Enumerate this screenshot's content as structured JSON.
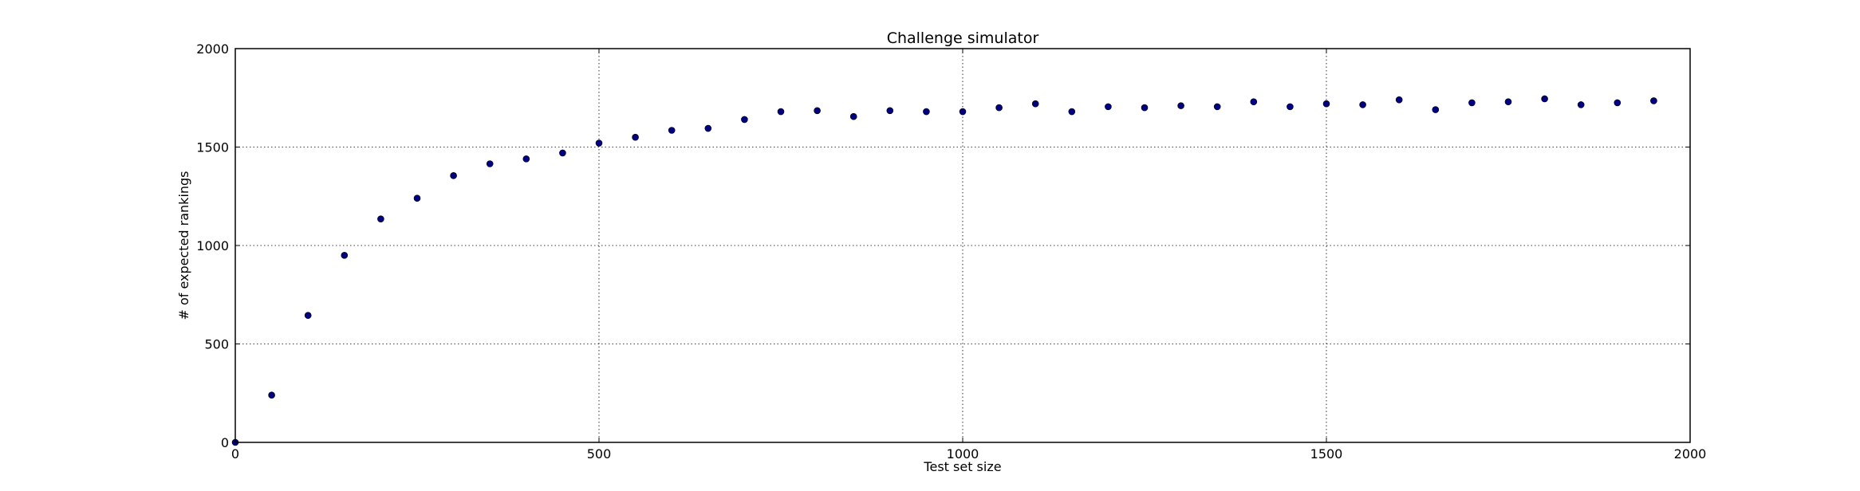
{
  "chart_data": {
    "type": "scatter",
    "title": "Challenge simulator",
    "xlabel": "Test set size",
    "ylabel": "# of expected rankings",
    "xlim": [
      0,
      2000
    ],
    "ylim": [
      0,
      2000
    ],
    "xticks": [
      0,
      500,
      1000,
      1500,
      2000
    ],
    "yticks": [
      0,
      500,
      1000,
      1500,
      2000
    ],
    "xtick_labels": [
      "0",
      "500",
      "1000",
      "1500",
      "2000"
    ],
    "ytick_labels": [
      "0",
      "500",
      "1000",
      "1500",
      "2000"
    ],
    "grid": true,
    "legend": "none",
    "marker_color": "#000080",
    "series": [
      {
        "x": [
          0,
          50,
          100,
          150,
          200,
          250,
          300,
          350,
          400,
          450,
          500,
          550,
          600,
          650,
          700,
          750,
          800,
          850,
          900,
          950,
          1000,
          1050,
          1100,
          1150,
          1200,
          1250,
          1300,
          1350,
          1400,
          1450,
          1500,
          1550,
          1600,
          1650,
          1700,
          1750,
          1800,
          1850,
          1900,
          1950
        ],
        "y": [
          0,
          240,
          645,
          950,
          1135,
          1240,
          1355,
          1415,
          1440,
          1470,
          1520,
          1550,
          1585,
          1595,
          1640,
          1680,
          1685,
          1655,
          1685,
          1680,
          1680,
          1700,
          1720,
          1680,
          1705,
          1700,
          1710,
          1705,
          1730,
          1705,
          1720,
          1715,
          1740,
          1690,
          1725,
          1730,
          1745,
          1715,
          1725,
          1735
        ]
      }
    ]
  }
}
